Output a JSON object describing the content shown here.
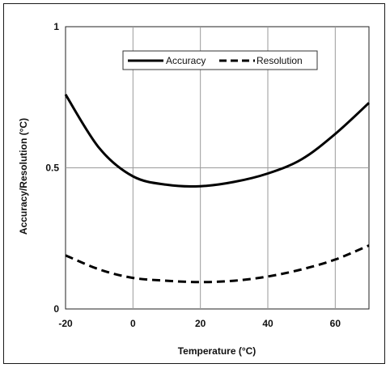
{
  "chart_data": {
    "type": "line",
    "xlabel": "Temperature (°C)",
    "ylabel": "Accuracy/Resolution  (°C)",
    "xlim": [
      -20,
      70
    ],
    "ylim": [
      0,
      1
    ],
    "x_ticks": [
      "-20",
      "0",
      "20",
      "40",
      "60"
    ],
    "y_ticks": [
      "0",
      "0.5",
      "1"
    ],
    "grid": true,
    "legend": "top-center",
    "series": [
      {
        "name": "Accuracy",
        "style": "solid",
        "color": "#000000",
        "x": [
          -20,
          -10,
          0,
          10,
          20,
          30,
          40,
          50,
          60,
          70
        ],
        "y": [
          0.76,
          0.57,
          0.47,
          0.44,
          0.435,
          0.45,
          0.48,
          0.53,
          0.62,
          0.73
        ]
      },
      {
        "name": "Resolution",
        "style": "dashed",
        "color": "#000000",
        "x": [
          -20,
          -10,
          0,
          10,
          20,
          30,
          40,
          50,
          60,
          70
        ],
        "y": [
          0.19,
          0.14,
          0.11,
          0.1,
          0.095,
          0.1,
          0.115,
          0.14,
          0.175,
          0.225
        ]
      }
    ]
  }
}
